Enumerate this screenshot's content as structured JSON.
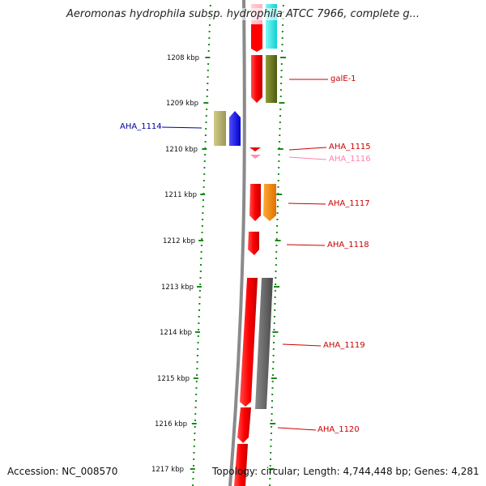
{
  "title": "Aeromonas hydrophila subsp. hydrophila ATCC 7966, complete g...",
  "footer": {
    "accession": "Accession: NC_008570",
    "summary": "Topology: circular; Length: 4,744,448 bp; Genes: 4,281"
  },
  "colors": {
    "backbone": "#7f7f7f",
    "ruler_ticks": "#1a8a1a",
    "gene_red": "#ff0000",
    "gene_blue": "#0000ff",
    "gene_pink": "#ff8fb0",
    "gene_cyan": "#22e8e8",
    "gene_olive": "#6b7a22",
    "gene_orange": "#ff8800",
    "gene_khaki": "#b8b26a",
    "gene_gray": "#6a6a6a"
  },
  "ruler": {
    "labels": [
      "1208 kbp",
      "1209 kbp",
      "1210 kbp",
      "1211 kbp",
      "1212 kbp",
      "1213 kbp",
      "1214 kbp",
      "1215 kbp",
      "1216 kbp",
      "1217 kbp"
    ]
  },
  "genes": [
    {
      "name": "galE-1",
      "color": "#cc0000"
    },
    {
      "name": "AHA_1114",
      "color": "#000099"
    },
    {
      "name": "AHA_1115",
      "color": "#cc0000"
    },
    {
      "name": "AHA_1116",
      "color": "#ff80b0"
    },
    {
      "name": "AHA_1117",
      "color": "#cc0000"
    },
    {
      "name": "AHA_1118",
      "color": "#cc0000"
    },
    {
      "name": "AHA_1119",
      "color": "#cc0000"
    },
    {
      "name": "AHA_1120",
      "color": "#cc0000"
    }
  ]
}
